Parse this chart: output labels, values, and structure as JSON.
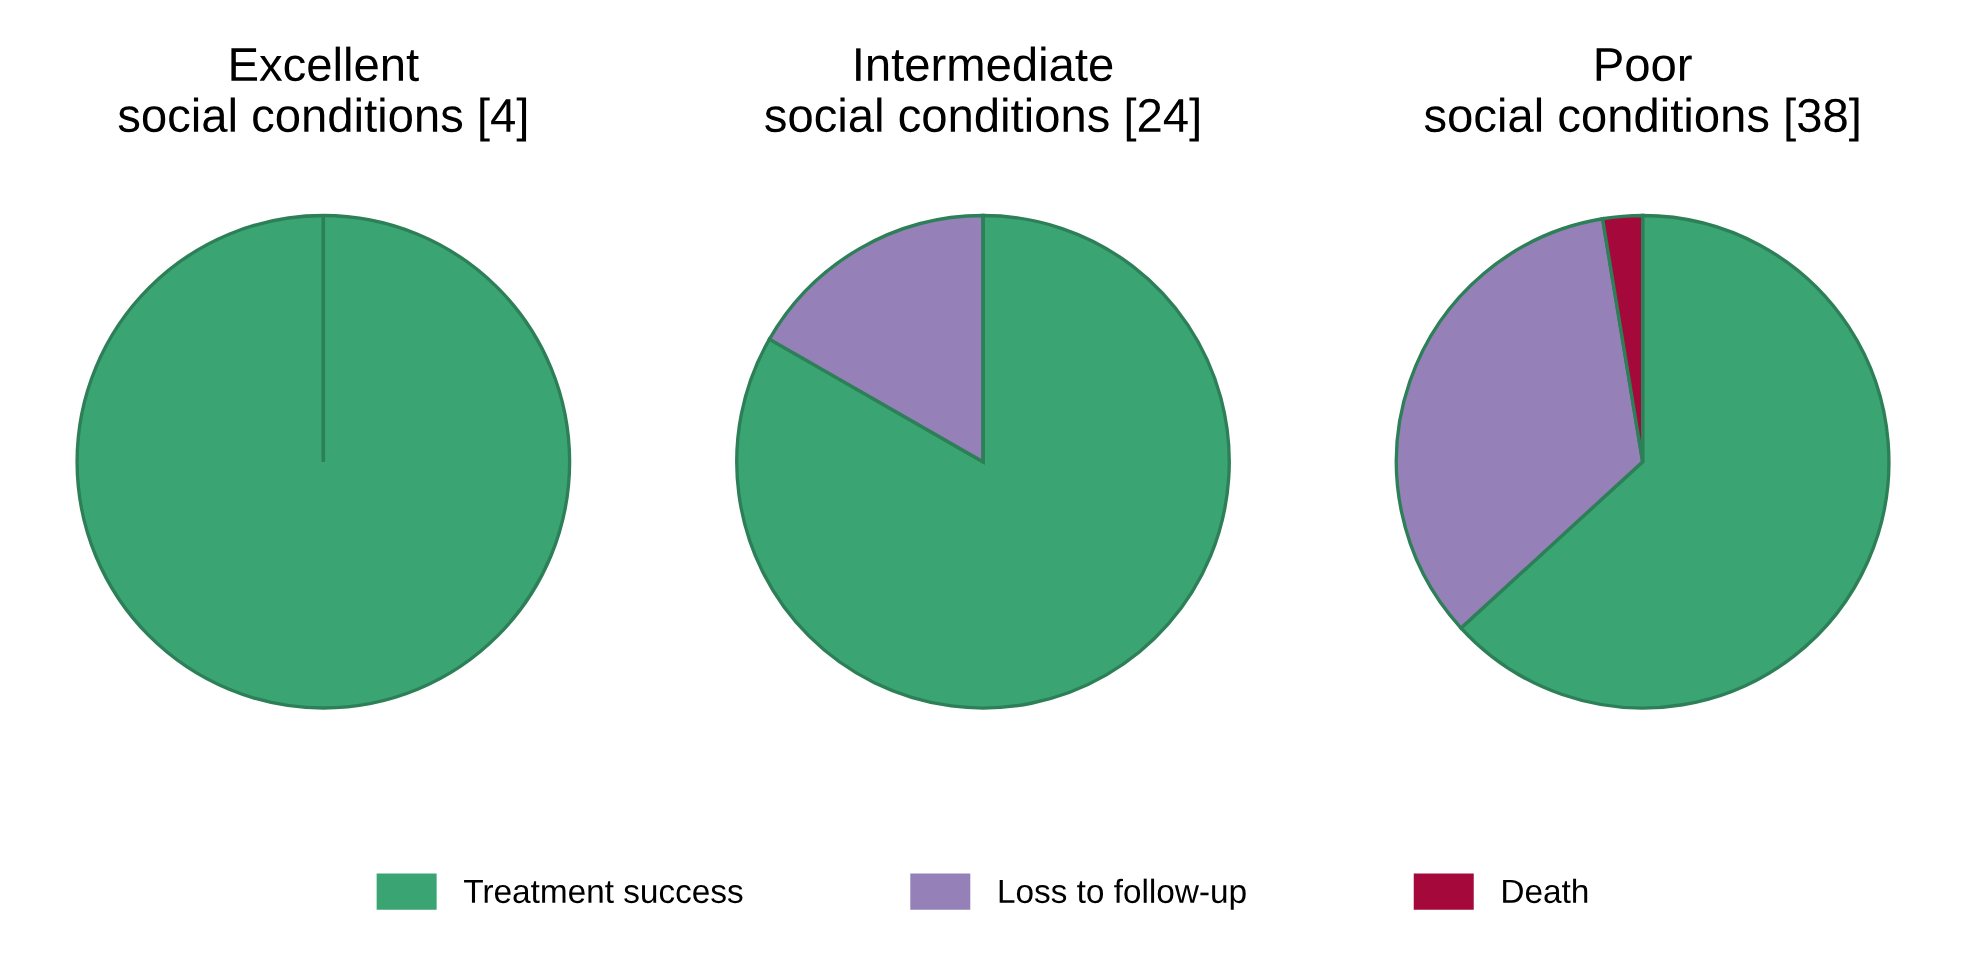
{
  "chart_data": [
    {
      "type": "pie",
      "title": "Excellent\nsocial conditions [4]",
      "categories": [
        null,
        null,
        null
      ],
      "values": [
        100,
        0,
        0
      ],
      "colors": [
        "#3aa572",
        "#9580b8",
        "#a5093c"
      ]
    },
    {
      "type": "pie",
      "title": "Intermediate\nsocial conditions [24]",
      "categories": [
        "Treatment success",
        "Loss to follow-up",
        "Death"
      ],
      "values": [
        83.3,
        16.7,
        0
      ],
      "colors": [
        "#3aa572",
        "#9580b8",
        "#a5093c"
      ],
      "legend": "bottom"
    },
    {
      "type": "pie",
      "title": "Poor\nsocial conditions [38]",
      "categories": [
        null,
        null,
        null
      ],
      "values": [
        63.2,
        34.2,
        2.6
      ],
      "colors": [
        "#3aa572",
        "#9580b8",
        "#a5093c"
      ]
    }
  ]
}
